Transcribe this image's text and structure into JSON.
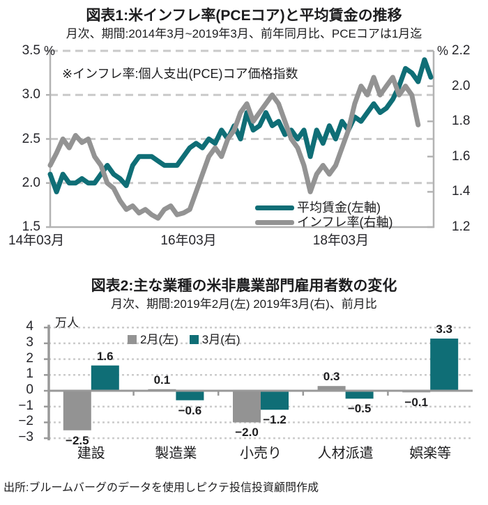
{
  "colors": {
    "teal": "#0f6e76",
    "gray": "#939393",
    "grid_dash": "#c9c9c9",
    "grid_dot": "#cbcbcb",
    "plot_border": "#b3b3b3",
    "zero_axis": "#999999",
    "text": "#1d1d1f"
  },
  "footer": {
    "source": "出所:ブルームバーグのデータを使用しピクテ投信投資顧問作成"
  },
  "chart_data": [
    {
      "type": "line",
      "title": "図表1:米インフレ率(PCEコア)と平均賃金の推移",
      "subtitle": "月次、期間:2014年3月~2019年3月、前年同月比、PCEコアは1月迄",
      "note": "※インフレ率:個人支出(PCE)コア価格指数",
      "x_tick_labels": [
        "14年03月",
        "16年03月",
        "18年03月"
      ],
      "x_tick_months": [
        0,
        24,
        48
      ],
      "x_total_months": 60,
      "left_axis": {
        "unit": "%",
        "ticks": [
          3.5,
          3.0,
          2.5,
          2.0,
          1.5
        ],
        "min": 1.5,
        "max": 3.5
      },
      "right_axis": {
        "unit": "%",
        "ticks": [
          2.2,
          2.0,
          1.8,
          1.6,
          1.4,
          1.2
        ],
        "min": 1.2,
        "max": 2.2
      },
      "grid": "dashed",
      "legend_position": "bottom-right",
      "series": [
        {
          "name": "平均賃金(左軸)",
          "axis": "left",
          "color": "#0f6e76",
          "values": [
            2.1,
            1.9,
            2.1,
            2.0,
            2.0,
            2.05,
            2.0,
            2.0,
            2.1,
            2.2,
            2.1,
            2.05,
            1.97,
            2.2,
            2.3,
            2.3,
            2.3,
            2.25,
            2.2,
            2.2,
            2.2,
            2.3,
            2.4,
            2.45,
            2.4,
            2.5,
            2.45,
            2.6,
            2.5,
            2.65,
            2.5,
            2.8,
            2.6,
            2.65,
            2.8,
            2.65,
            2.7,
            2.55,
            2.6,
            2.5,
            2.6,
            2.3,
            2.6,
            2.45,
            2.65,
            2.5,
            2.7,
            2.6,
            2.75,
            2.7,
            2.8,
            2.9,
            2.8,
            2.85,
            2.95,
            3.1,
            3.3,
            3.25,
            3.15,
            3.4,
            3.2
          ]
        },
        {
          "name": "インフレ率(右軸)",
          "axis": "right",
          "color": "#939393",
          "values": [
            1.55,
            1.62,
            1.7,
            1.65,
            1.72,
            1.68,
            1.7,
            1.6,
            1.55,
            1.45,
            1.42,
            1.35,
            1.3,
            1.32,
            1.28,
            1.3,
            1.27,
            1.25,
            1.3,
            1.32,
            1.27,
            1.28,
            1.3,
            1.4,
            1.5,
            1.6,
            1.65,
            1.6,
            1.7,
            1.75,
            1.85,
            1.9,
            1.8,
            1.85,
            1.9,
            1.95,
            1.9,
            1.8,
            1.7,
            1.65,
            1.55,
            1.4,
            1.5,
            1.55,
            1.5,
            1.55,
            1.65,
            1.75,
            1.9,
            2.0,
            1.95,
            2.05,
            1.95,
            2.0,
            2.05,
            1.95,
            2.0,
            1.95,
            1.78
          ]
        }
      ]
    },
    {
      "type": "bar",
      "title": "図表2:主な業種の米非農業部門雇用者数の変化",
      "subtitle": "月次、期間:2019年2月(左) 2019年3月(右)、前月比",
      "ylabel": "万人",
      "categories": [
        "建設",
        "製造業",
        "小売り",
        "人材派遣",
        "娯楽等"
      ],
      "series": [
        {
          "name": "2月(左)",
          "color": "#939393",
          "values": [
            -2.5,
            0.1,
            -2.0,
            0.3,
            -0.1
          ]
        },
        {
          "name": "3月(右)",
          "color": "#0f6e76",
          "values": [
            1.6,
            -0.6,
            -1.2,
            -0.5,
            3.3
          ]
        }
      ],
      "y_ticks": [
        4,
        3,
        2,
        1,
        0,
        -1,
        -2,
        -3
      ],
      "ylim": [
        -3,
        4
      ],
      "grid": "dotted",
      "legend_position": "top-center"
    }
  ]
}
